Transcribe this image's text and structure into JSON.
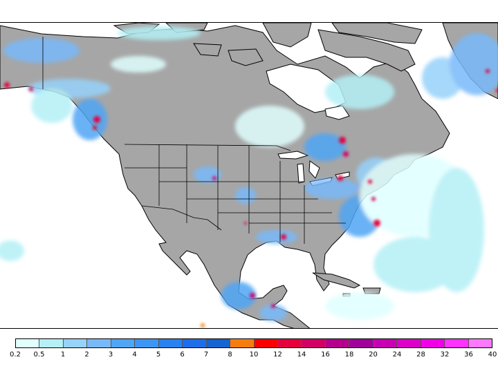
{
  "legend": {
    "colors": [
      "#e0ffff",
      "#b4f0f6",
      "#96d2fa",
      "#78b9fa",
      "#50a5f5",
      "#3c96f5",
      "#2882f0",
      "#1e6eeb",
      "#1464d2",
      "#f57d0f",
      "#fa0000",
      "#e6003c",
      "#d20064",
      "#b4008c",
      "#a0009b",
      "#c800b4",
      "#dc00c8",
      "#f000e6",
      "#ff32ff",
      "#ff78ff"
    ],
    "labels": [
      "0.2",
      "0.5",
      "1",
      "2",
      "3",
      "4",
      "5",
      "6",
      "7",
      "8",
      "10",
      "12",
      "14",
      "16",
      "18",
      "20",
      "24",
      "28",
      "32",
      "36",
      "40"
    ]
  }
}
